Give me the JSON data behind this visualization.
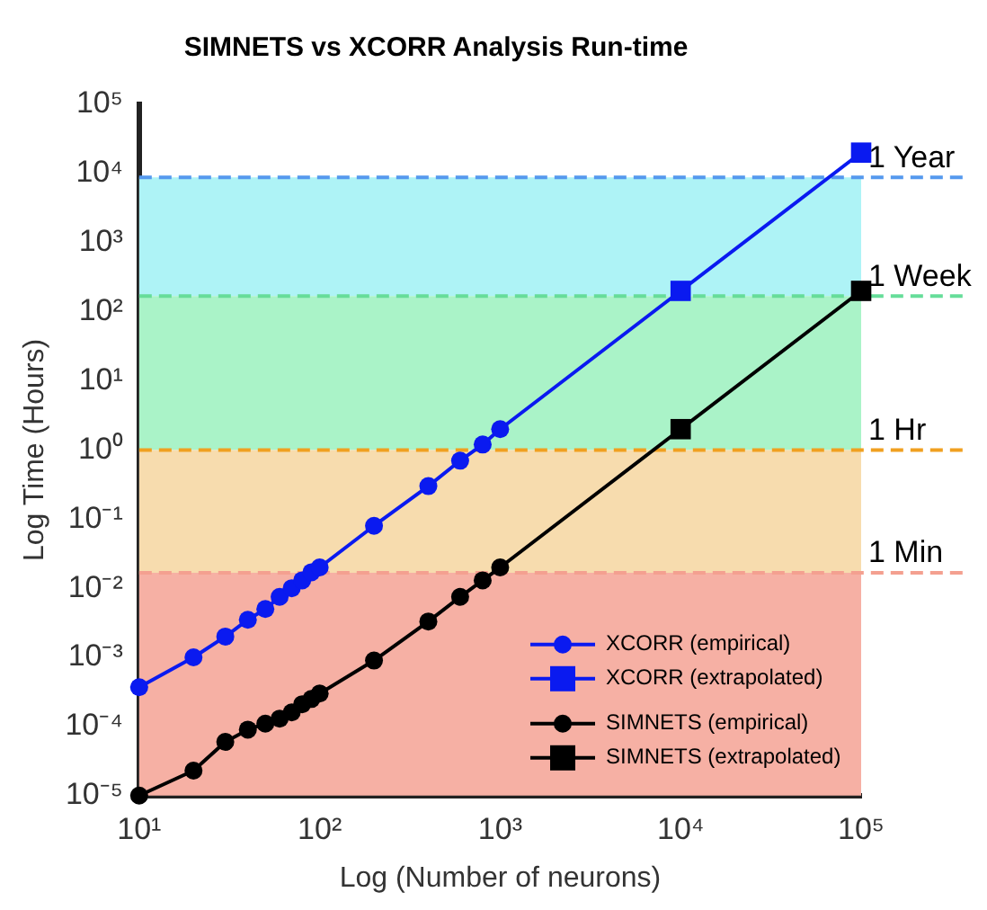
{
  "chart_data": {
    "type": "line",
    "title": "SIMNETS vs XCORR Analysis Run-time",
    "xlabel": "Log (Number of neurons)",
    "ylabel": "Log Time (Hours)",
    "log": "xy",
    "xlim": [
      10,
      100000
    ],
    "xticks": [
      {
        "value": 10,
        "label": "10¹"
      },
      {
        "value": 100,
        "label": "10²"
      },
      {
        "value": 1000,
        "label": "10³"
      },
      {
        "value": 10000,
        "label": "10⁴"
      },
      {
        "value": 100000,
        "label": "10⁵"
      }
    ],
    "ylim": [
      1e-05,
      100000
    ],
    "yticks": [
      {
        "value": 1e-05,
        "label": "10⁻⁵"
      },
      {
        "value": 0.0001,
        "label": "10⁻⁴"
      },
      {
        "value": 0.001,
        "label": "10⁻³"
      },
      {
        "value": 0.01,
        "label": "10⁻²"
      },
      {
        "value": 0.1,
        "label": "10⁻¹"
      },
      {
        "value": 1,
        "label": "10⁰"
      },
      {
        "value": 10,
        "label": "10¹"
      },
      {
        "value": 100,
        "label": "10²"
      },
      {
        "value": 1000,
        "label": "10³"
      },
      {
        "value": 10000,
        "label": "10⁴"
      },
      {
        "value": 100000,
        "label": "10⁵"
      }
    ],
    "grid": false,
    "legend": "bottom right",
    "line_style": "solid",
    "series": [
      {
        "name": "XCORR (empirical)",
        "color": "#0a1af0",
        "marker": "circle",
        "x": [
          10,
          20,
          30,
          40,
          50,
          60,
          70,
          80,
          90,
          100,
          200,
          400,
          600,
          800,
          1000
        ],
        "values": [
          0.00037,
          0.001,
          0.002,
          0.0035,
          0.005,
          0.0075,
          0.01,
          0.013,
          0.017,
          0.02,
          0.08,
          0.3,
          0.7,
          1.2,
          2
        ]
      },
      {
        "name": "XCORR (extrapolated)",
        "color": "#0a1af0",
        "marker": "square",
        "x": [
          1000,
          10000,
          100000
        ],
        "values": [
          2,
          200,
          20000
        ]
      },
      {
        "name": "SIMNETS (empirical)",
        "color": "#000000",
        "marker": "circle",
        "x": [
          10,
          20,
          30,
          40,
          50,
          60,
          70,
          80,
          90,
          100,
          200,
          400,
          600,
          800,
          1000
        ],
        "values": [
          1e-05,
          2.3e-05,
          6e-05,
          9e-05,
          0.00011,
          0.00013,
          0.00016,
          0.00021,
          0.00025,
          0.0003,
          0.0009,
          0.0033,
          0.0075,
          0.013,
          0.02
        ]
      },
      {
        "name": "SIMNETS (extrapolated)",
        "color": "#000000",
        "marker": "square",
        "x": [
          1000,
          10000,
          100000
        ],
        "values": [
          0.02,
          2,
          200
        ]
      }
    ],
    "bands": [
      {
        "axis": "y",
        "from": 168,
        "to": 8760,
        "color": "#aef3f6"
      },
      {
        "axis": "y",
        "from": 1,
        "to": 168,
        "color": "#aaf3c8"
      },
      {
        "axis": "y",
        "from": 0.0167,
        "to": 1,
        "color": "#f7dcae"
      },
      {
        "axis": "y",
        "from": 1e-05,
        "to": 0.0167,
        "color": "#f6b0a4"
      }
    ],
    "ref_lines": [
      {
        "axis": "y",
        "value": 8760,
        "label": "1 Year",
        "color": "#5599ee",
        "line_style": "dashed"
      },
      {
        "axis": "y",
        "value": 168,
        "label": "1 Week",
        "color": "#66dd99",
        "line_style": "dashed"
      },
      {
        "axis": "y",
        "value": 1,
        "label": "1 Hr",
        "color": "#f0a020",
        "line_style": "dashed"
      },
      {
        "axis": "y",
        "value": 0.0167,
        "label": "1 Min",
        "color": "#f4a090",
        "line_style": "dashed"
      }
    ]
  }
}
